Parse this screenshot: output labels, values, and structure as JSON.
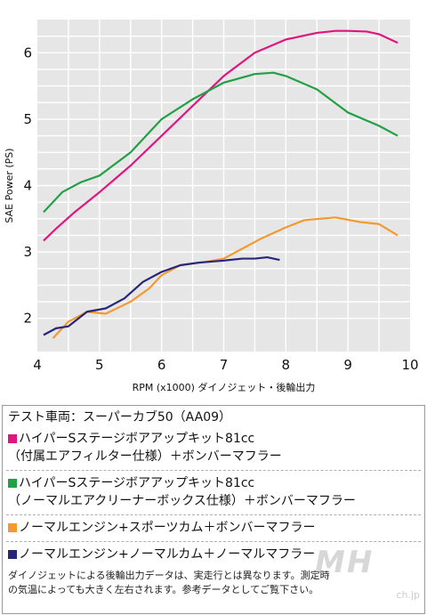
{
  "chart_data": {
    "type": "line",
    "xlabel": "RPM (x1000) ダイノジェット・後輪出力",
    "ylabel": "SAE Power (PS)",
    "xlim": [
      4,
      10
    ],
    "ylim": [
      1.5,
      6.5
    ],
    "x_ticks": [
      "4",
      "5",
      "6",
      "7",
      "8",
      "9",
      "10"
    ],
    "y_ticks": [
      "2",
      "3",
      "4",
      "5",
      "6"
    ],
    "grid": true,
    "colors": {
      "background": "#e6e6e6",
      "grid": "#ffffff"
    },
    "series": [
      {
        "name": "ハイパーSステージボアアップキット81cc（付属エアフィルター仕様）＋ボンバーマフラー",
        "color": "#e0167f",
        "x": [
          4.1,
          4.3,
          4.6,
          5.0,
          5.5,
          6.0,
          6.5,
          7.0,
          7.5,
          8.0,
          8.5,
          8.8,
          9.0,
          9.3,
          9.5,
          9.8
        ],
        "y": [
          3.17,
          3.35,
          3.6,
          3.9,
          4.3,
          4.75,
          5.2,
          5.65,
          6.0,
          6.2,
          6.3,
          6.33,
          6.33,
          6.32,
          6.28,
          6.15
        ]
      },
      {
        "name": "ハイパーSステージボアアップキット81cc（ノーマルエアクリーナーボックス仕様）＋ボンバーマフラー",
        "color": "#22a046",
        "x": [
          4.1,
          4.4,
          4.7,
          5.0,
          5.5,
          6.0,
          6.5,
          7.0,
          7.5,
          7.8,
          8.0,
          8.5,
          9.0,
          9.5,
          9.8
        ],
        "y": [
          3.6,
          3.9,
          4.05,
          4.15,
          4.5,
          5.0,
          5.3,
          5.55,
          5.68,
          5.7,
          5.65,
          5.45,
          5.1,
          4.9,
          4.75
        ]
      },
      {
        "name": "ノーマルエンジン+スポーツカム＋ボンバーマフラー",
        "color": "#f29a2e",
        "x": [
          4.25,
          4.5,
          4.8,
          5.1,
          5.5,
          5.8,
          6.0,
          6.3,
          6.7,
          7.0,
          7.3,
          7.6,
          8.0,
          8.3,
          8.8,
          9.2,
          9.5,
          9.8
        ],
        "y": [
          1.7,
          1.95,
          2.1,
          2.07,
          2.25,
          2.45,
          2.65,
          2.8,
          2.85,
          2.9,
          3.05,
          3.2,
          3.37,
          3.48,
          3.52,
          3.45,
          3.42,
          3.25
        ]
      },
      {
        "name": "ノーマルエンジン+ノーマルカム＋ノーマルマフラー",
        "color": "#27277a",
        "x": [
          4.1,
          4.3,
          4.5,
          4.8,
          5.1,
          5.4,
          5.7,
          6.0,
          6.3,
          6.6,
          7.0,
          7.3,
          7.5,
          7.7,
          7.9
        ],
        "y": [
          1.75,
          1.85,
          1.88,
          2.1,
          2.15,
          2.3,
          2.55,
          2.7,
          2.8,
          2.84,
          2.87,
          2.9,
          2.9,
          2.92,
          2.88
        ]
      }
    ]
  },
  "legend": {
    "vehicle": "テスト車両：スーパーカブ50（AA09）",
    "items": [
      {
        "line1": "ハイパーSステージボアアップキット81cc",
        "line2": "（付属エアフィルター仕様）＋ボンバーマフラー",
        "color": "#e0167f"
      },
      {
        "line1": "ハイパーSステージボアアップキット81cc",
        "line2": "（ノーマルエアクリーナーボックス仕様）＋ボンバーマフラー",
        "color": "#22a046"
      },
      {
        "line1": "ノーマルエンジン+スポーツカム＋ボンバーマフラー",
        "line2": "",
        "color": "#f29a2e"
      },
      {
        "line1": "ノーマルエンジン+ノーマルカム＋ノーマルマフラー",
        "line2": "",
        "color": "#27277a"
      }
    ],
    "note_line1": "ダイノジェットによる後輪出力データは、実走行とは異なります。測定時",
    "note_line2": "の気温によっても大きく左右されます。参考データとしてご覧下さい。"
  },
  "watermark": {
    "logo_text": "MH",
    "sub_text": "ch.jp"
  }
}
